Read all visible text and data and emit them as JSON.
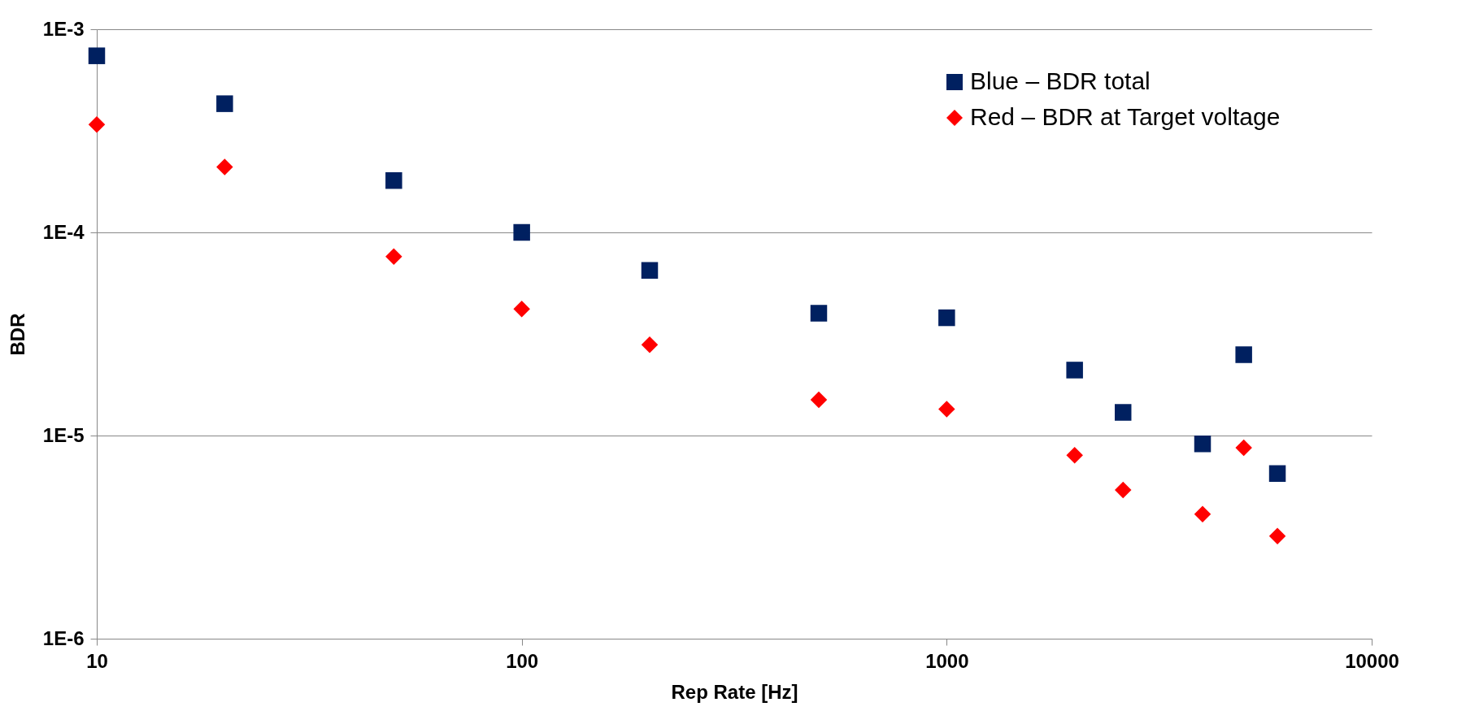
{
  "chart_data": {
    "type": "scatter",
    "xlabel": "Rep Rate [Hz]",
    "ylabel": "BDR",
    "log": "xy",
    "grid": "y",
    "legend": "top right",
    "xlim": [
      10,
      10000
    ],
    "xticks": [
      10,
      100,
      1000,
      10000
    ],
    "ylim": [
      1e-06,
      0.001
    ],
    "yticks": [
      {
        "value": 1e-06,
        "label": "1E-6"
      },
      {
        "value": 1e-05,
        "label": "1E-5"
      },
      {
        "value": 0.0001,
        "label": "1E-4"
      },
      {
        "value": 0.001,
        "label": "1E-3"
      }
    ],
    "series": [
      {
        "name": "Blue – BDR total",
        "color": "#002060",
        "marker": "square",
        "x": [
          10,
          20,
          50,
          100,
          200,
          500,
          1000,
          2000,
          2600,
          4000,
          5000,
          6000
        ],
        "values": [
          0.00074,
          0.00043,
          0.00018,
          0.0001,
          6.5e-05,
          4e-05,
          3.8e-05,
          2.1e-05,
          1.3e-05,
          9.1e-06,
          2.5e-05,
          6.5e-06
        ]
      },
      {
        "name": "Red – BDR at Target voltage",
        "color": "#ff0000",
        "marker": "diamond",
        "x": [
          10,
          20,
          50,
          100,
          200,
          500,
          1000,
          2000,
          2600,
          4000,
          5000,
          6000
        ],
        "values": [
          0.00034,
          0.00021,
          7.6e-05,
          4.2e-05,
          2.8e-05,
          1.5e-05,
          1.35e-05,
          8e-06,
          5.4e-06,
          4.1e-06,
          8.7e-06,
          3.2e-06
        ]
      }
    ]
  }
}
